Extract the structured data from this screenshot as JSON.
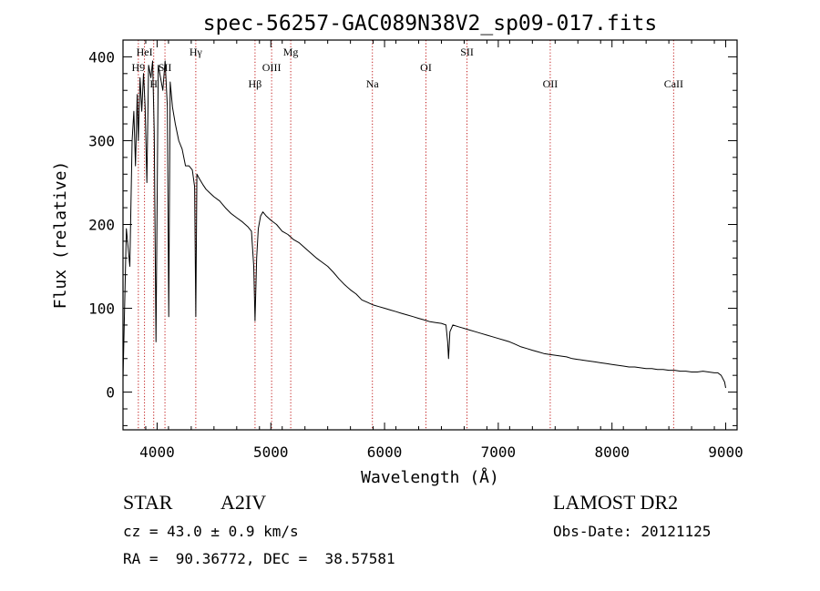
{
  "chart_data": {
    "type": "line",
    "title": "spec-56257-GAC089N38V2_sp09-017.fits",
    "xlabel": "Wavelength (Å)",
    "ylabel": "Flux (relative)",
    "xlim": [
      3700,
      9100
    ],
    "ylim": [
      -45,
      420
    ],
    "x_ticks": [
      4000,
      5000,
      6000,
      7000,
      8000,
      9000
    ],
    "x_tick_labels": [
      "4000",
      "5000",
      "6000",
      "7000",
      "8000",
      "9000"
    ],
    "y_ticks": [
      0,
      100,
      200,
      300,
      400
    ],
    "y_tick_labels": [
      "0",
      "100",
      "200",
      "300",
      "400"
    ],
    "grid": false,
    "series": [
      {
        "x": [
          3700,
          3730,
          3760,
          3780,
          3795,
          3810,
          3825,
          3835,
          3850,
          3865,
          3880,
          3895,
          3910,
          3925,
          3945,
          3960,
          3975,
          3990,
          4010,
          4030,
          4050,
          4070,
          4090,
          4102,
          4115,
          4135,
          4160,
          4190,
          4220,
          4250,
          4280,
          4310,
          4330,
          4340,
          4350,
          4370,
          4400,
          4430,
          4460,
          4500,
          4550,
          4600,
          4650,
          4700,
          4750,
          4800,
          4830,
          4850,
          4861,
          4875,
          4890,
          4910,
          4930,
          4960,
          5000,
          5050,
          5100,
          5150,
          5200,
          5250,
          5300,
          5350,
          5400,
          5450,
          5500,
          5550,
          5600,
          5650,
          5700,
          5750,
          5800,
          5850,
          5900,
          5950,
          6000,
          6050,
          6100,
          6150,
          6200,
          6250,
          6300,
          6350,
          6400,
          6450,
          6500,
          6540,
          6555,
          6563,
          6575,
          6600,
          6650,
          6700,
          6750,
          6800,
          6850,
          6900,
          6950,
          7000,
          7050,
          7100,
          7150,
          7200,
          7250,
          7300,
          7350,
          7400,
          7450,
          7500,
          7550,
          7600,
          7650,
          7700,
          7750,
          7800,
          7850,
          7900,
          7950,
          8000,
          8050,
          8100,
          8150,
          8200,
          8250,
          8300,
          8350,
          8400,
          8450,
          8500,
          8550,
          8600,
          8650,
          8700,
          8750,
          8800,
          8850,
          8900,
          8930,
          8960,
          8990,
          9000
        ],
        "values": [
          15,
          195,
          150,
          300,
          335,
          270,
          355,
          300,
          375,
          335,
          380,
          340,
          250,
          390,
          375,
          395,
          310,
          60,
          390,
          375,
          360,
          395,
          340,
          90,
          370,
          340,
          320,
          300,
          290,
          270,
          270,
          265,
          245,
          90,
          260,
          255,
          248,
          242,
          238,
          233,
          228,
          220,
          213,
          208,
          203,
          197,
          192,
          150,
          85,
          160,
          195,
          210,
          215,
          210,
          205,
          200,
          192,
          188,
          182,
          178,
          172,
          166,
          160,
          155,
          150,
          143,
          135,
          128,
          122,
          117,
          110,
          107,
          104,
          102,
          100,
          98,
          96,
          94,
          92,
          90,
          88,
          86,
          84,
          83,
          82,
          80,
          60,
          40,
          72,
          80,
          78,
          76,
          74,
          72,
          70,
          68,
          66,
          64,
          62,
          60,
          57,
          54,
          52,
          50,
          48,
          46,
          45,
          44,
          43,
          42,
          40,
          39,
          38,
          37,
          36,
          35,
          34,
          33,
          32,
          31,
          30,
          30,
          29,
          28,
          28,
          27,
          27,
          26,
          26,
          25,
          25,
          24,
          24,
          25,
          24,
          23,
          23,
          20,
          12,
          5
        ]
      }
    ],
    "line_markers": [
      {
        "label": "H9",
        "wavelength": 3835,
        "row": 2
      },
      {
        "label": "HeI",
        "wavelength": 3889,
        "row": 1
      },
      {
        "label": "H",
        "wavelength": 3970,
        "row": 3
      },
      {
        "label": "SII",
        "wavelength": 4069,
        "row": 2
      },
      {
        "label": "Hγ",
        "wavelength": 4340,
        "row": 1
      },
      {
        "label": "Hβ",
        "wavelength": 4861,
        "row": 3
      },
      {
        "label": "OIII",
        "wavelength": 5007,
        "row": 2
      },
      {
        "label": "Mg",
        "wavelength": 5175,
        "row": 1
      },
      {
        "label": "Na",
        "wavelength": 5893,
        "row": 3
      },
      {
        "label": "OI",
        "wavelength": 6364,
        "row": 2
      },
      {
        "label": "SII",
        "wavelength": 6725,
        "row": 1
      },
      {
        "label": "OII",
        "wavelength": 7457,
        "row": 3
      },
      {
        "label": "CaII",
        "wavelength": 8542,
        "row": 3
      }
    ],
    "colors": {
      "axis": "#000000",
      "spectrum": "#000000",
      "marker_lines": "#c01818"
    }
  },
  "info": {
    "class_label": "STAR",
    "subclass": "A2IV",
    "cz_line": "cz = 43.0 ± 0.9 km/s",
    "radec_line": "RA =  90.36772, DEC =  38.57581",
    "survey": "LAMOST DR2",
    "obs_date": "Obs-Date: 20121125"
  }
}
